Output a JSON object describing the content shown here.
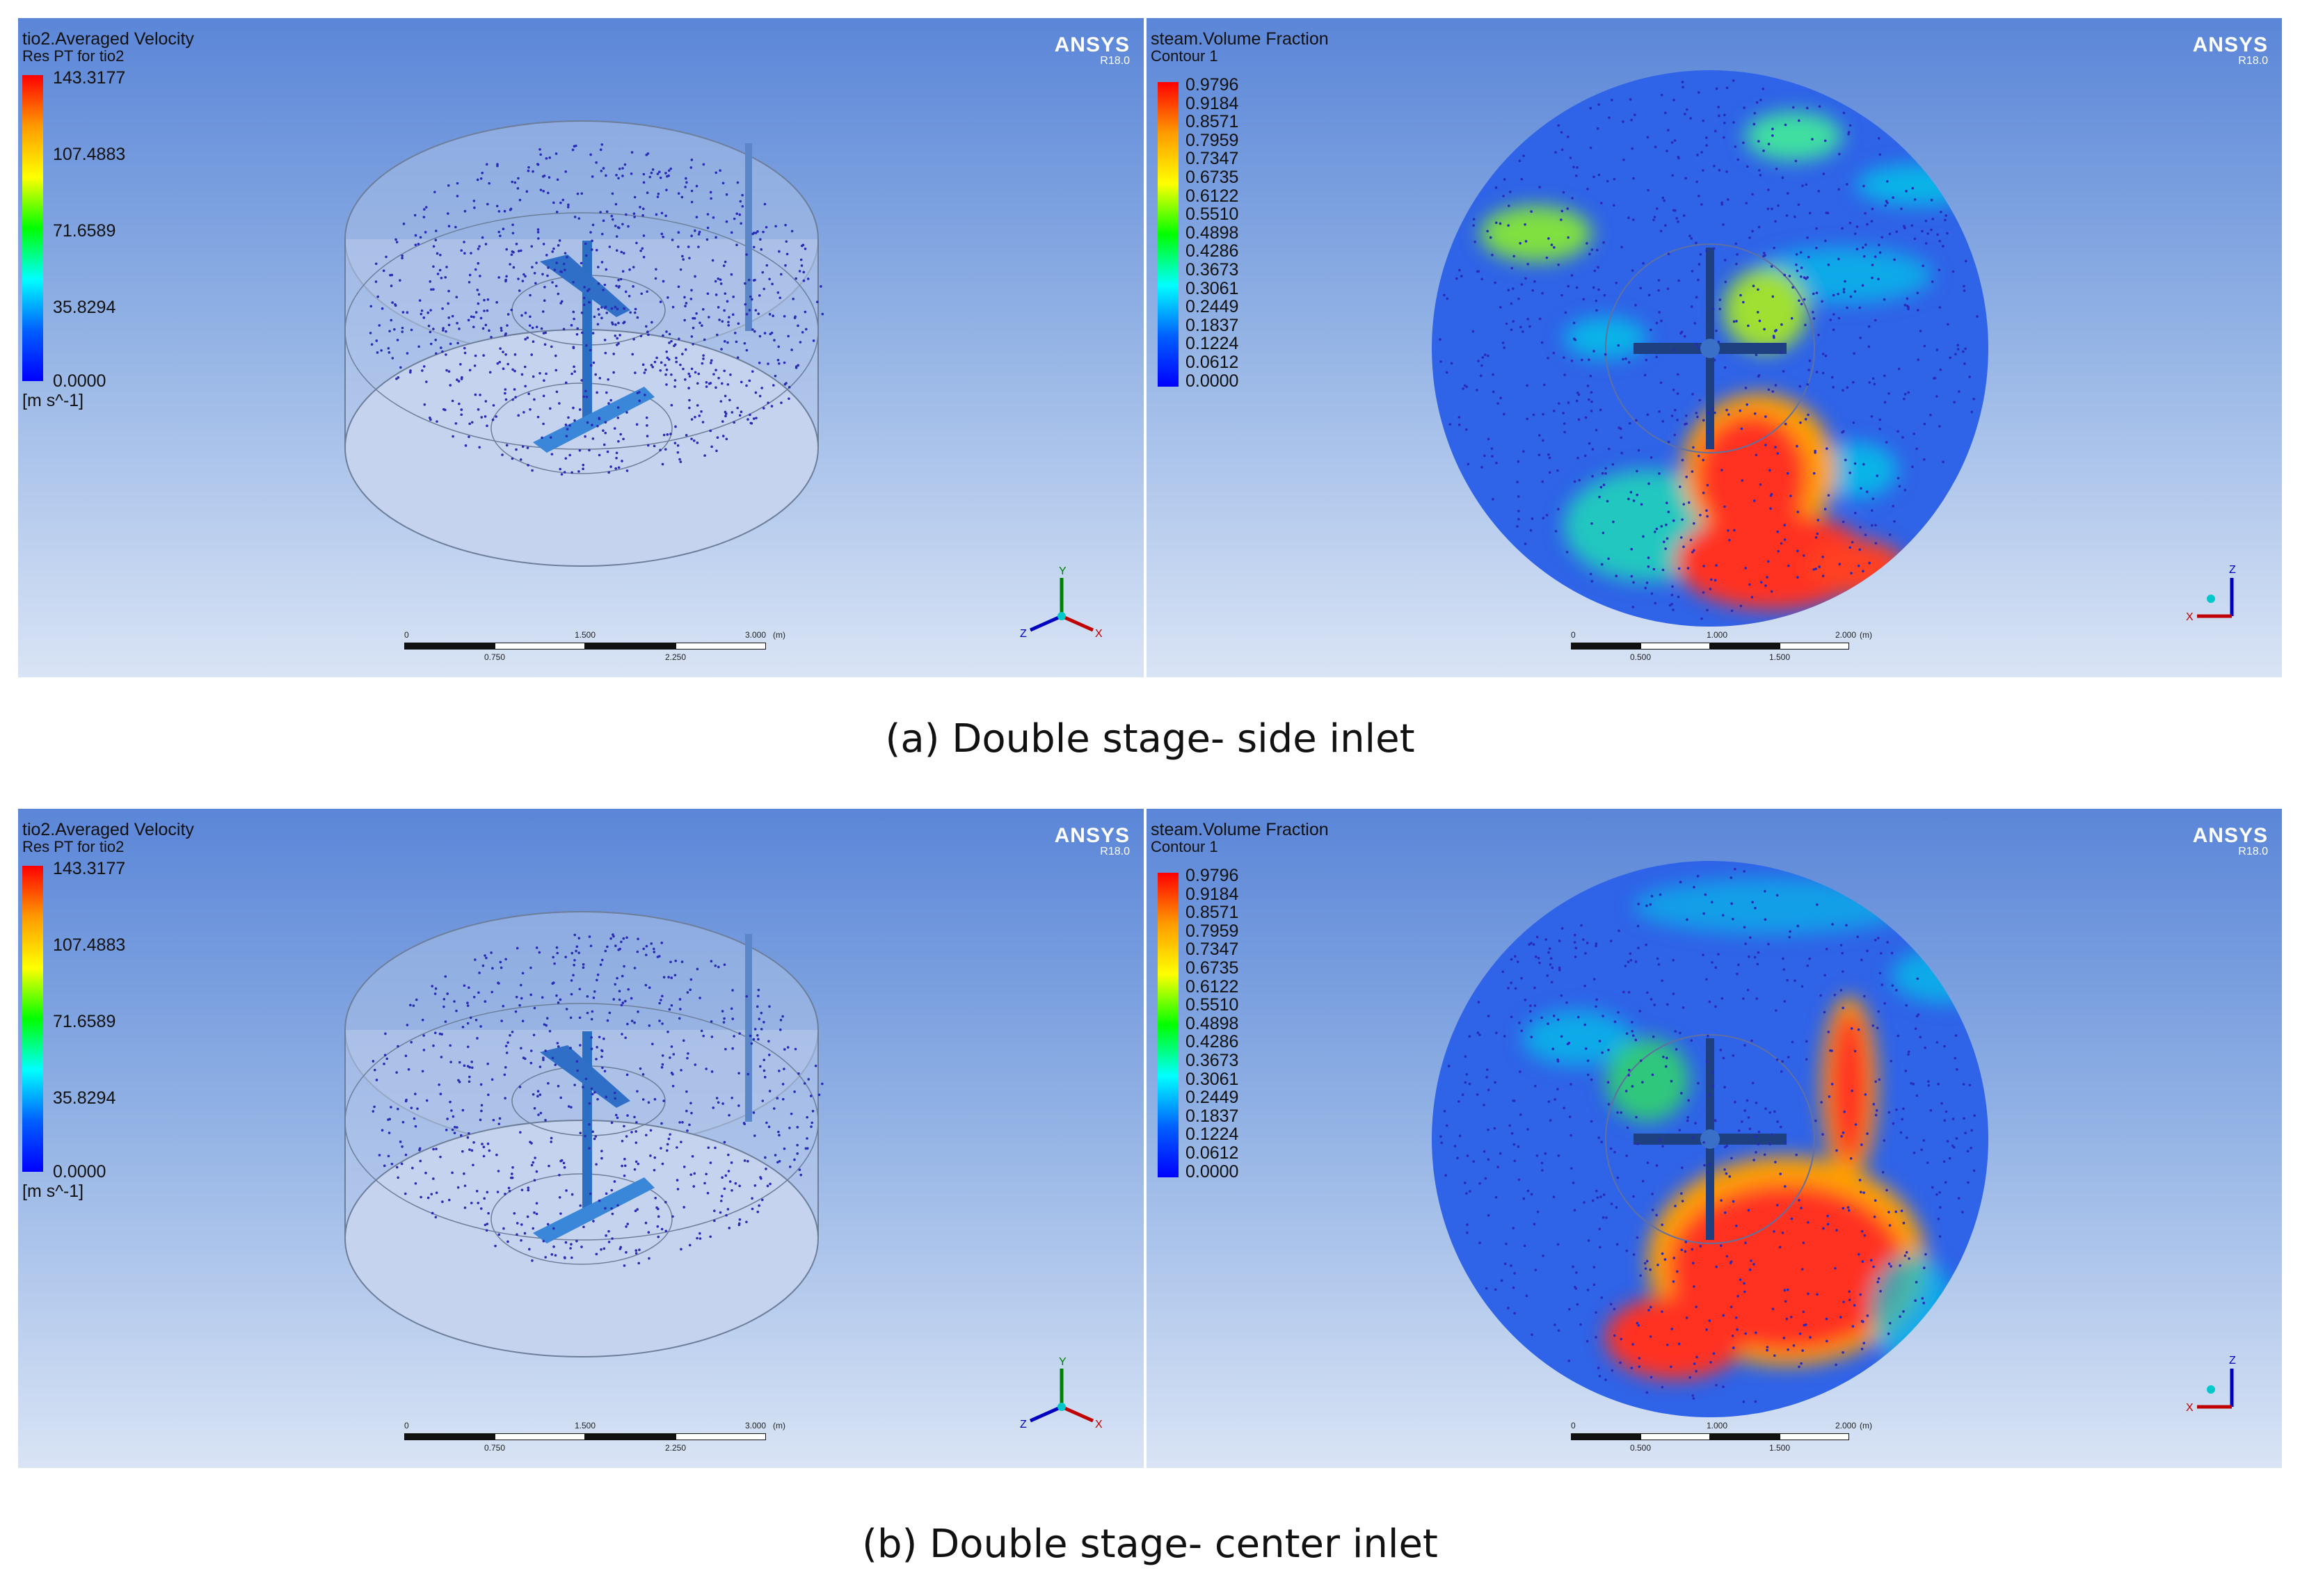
{
  "brand": {
    "name": "ANSYS",
    "version": "R18.0"
  },
  "velocity_legend": {
    "title": "tio2.Averaged Velocity",
    "subtitle": "Res PT for tio2",
    "ticks": [
      "143.3177",
      "107.4883",
      "71.6589",
      "35.8294",
      "0.0000"
    ],
    "unit": "[m s^-1]"
  },
  "fraction_legend": {
    "title": "steam.Volume Fraction",
    "subtitle": "Contour 1",
    "ticks": [
      "0.9796",
      "0.9184",
      "0.8571",
      "0.7959",
      "0.7347",
      "0.6735",
      "0.6122",
      "0.5510",
      "0.4898",
      "0.4286",
      "0.3673",
      "0.3061",
      "0.2449",
      "0.1837",
      "0.1224",
      "0.0612",
      "0.0000"
    ]
  },
  "scale_left": {
    "top": [
      "0",
      "1.500",
      "3.000"
    ],
    "unit": "(m)",
    "bottom": [
      "0.750",
      "2.250"
    ]
  },
  "scale_right": {
    "top": [
      "0",
      "1.000",
      "2.000"
    ],
    "unit": "(m)",
    "bottom": [
      "0.500",
      "1.500"
    ]
  },
  "axes_left": {
    "x": "X",
    "y": "Y",
    "z": "Z"
  },
  "axes_right": {
    "x": "X",
    "z": "Z"
  },
  "captions": {
    "a": "(a) Double stage- side inlet",
    "b": "(b) Double stage- center inlet"
  },
  "colors": {
    "min": "#0000ff",
    "mid": "#00ff00",
    "max": "#ff0000",
    "particle": "#2a2ab8"
  }
}
